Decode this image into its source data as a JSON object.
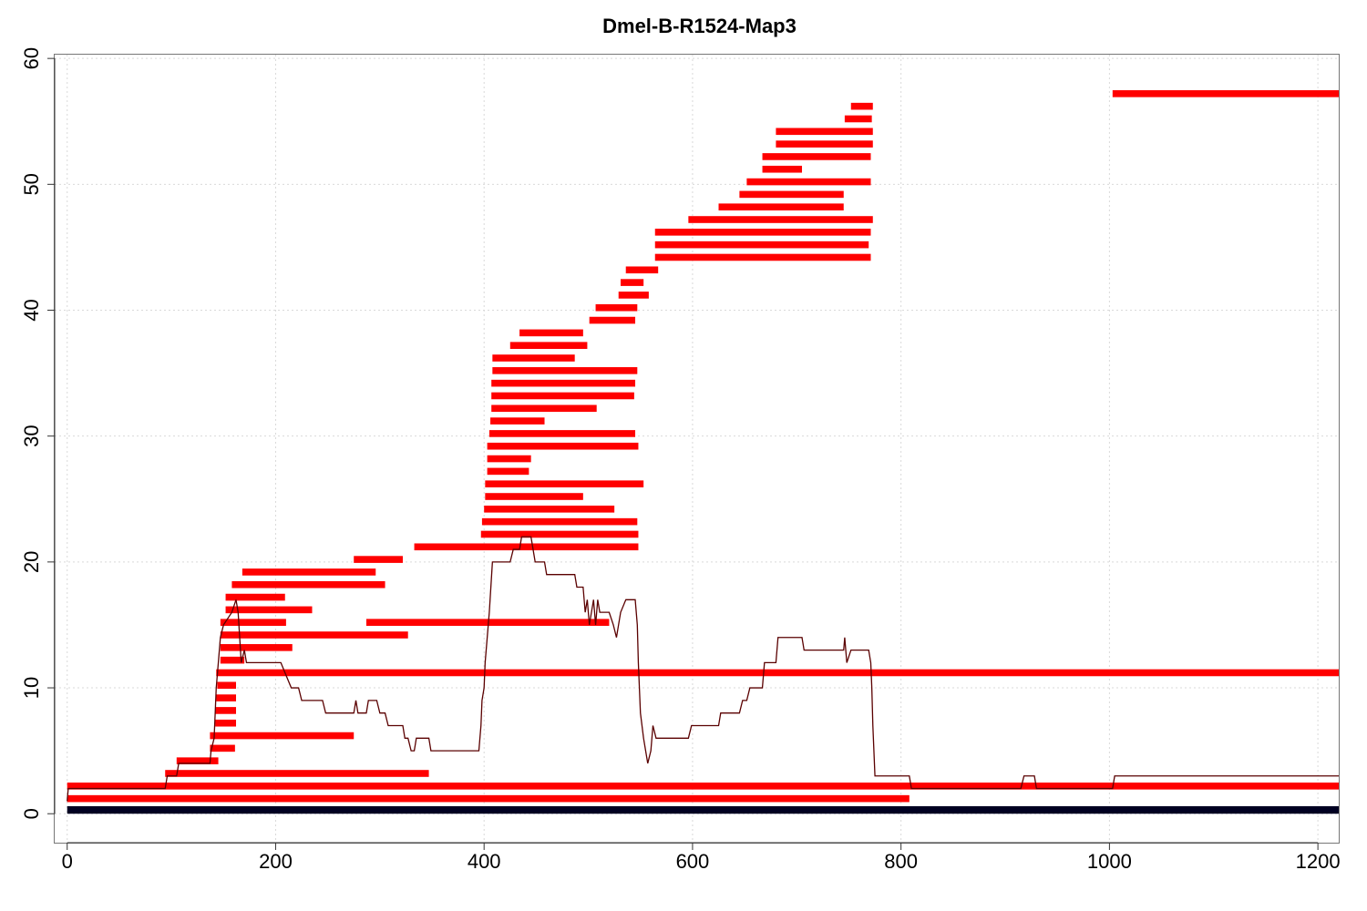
{
  "chart_data": {
    "type": "line",
    "title": "Dmel-B-R1524-Map3",
    "xlabel": "",
    "ylabel": "",
    "xlim": [
      -12,
      1220
    ],
    "ylim": [
      -2.3,
      60.3
    ],
    "xticks": [
      "0",
      "200",
      "400",
      "600",
      "800",
      "1000",
      "1200"
    ],
    "yticks": [
      "0",
      "10",
      "20",
      "30",
      "40",
      "50",
      "60"
    ],
    "grid": true,
    "colors": {
      "reads": "#ff0000",
      "coverage": "#5a0000",
      "reference": "#000022",
      "grid": "#d9d9d9"
    },
    "reference": {
      "start": 0,
      "end": 1220,
      "y": 0.3
    },
    "reads": [
      [
        1003,
        1220,
        57.2
      ],
      [
        752,
        773,
        56.2
      ],
      [
        746,
        772,
        55.2
      ],
      [
        680,
        773,
        54.2
      ],
      [
        680,
        773,
        53.2
      ],
      [
        667,
        771,
        52.2
      ],
      [
        667,
        705,
        51.2
      ],
      [
        652,
        771,
        50.2
      ],
      [
        645,
        745,
        49.2
      ],
      [
        625,
        745,
        48.2
      ],
      [
        596,
        773,
        47.2
      ],
      [
        564,
        771,
        46.2
      ],
      [
        564,
        769,
        45.2
      ],
      [
        564,
        771,
        44.2
      ],
      [
        536,
        567,
        43.2
      ],
      [
        531,
        553,
        42.2
      ],
      [
        529,
        558,
        41.2
      ],
      [
        507,
        547,
        40.2
      ],
      [
        501,
        545,
        39.2
      ],
      [
        434,
        495,
        38.2
      ],
      [
        425,
        499,
        37.2
      ],
      [
        408,
        487,
        36.2
      ],
      [
        408,
        547,
        35.2
      ],
      [
        407,
        545,
        34.2
      ],
      [
        407,
        544,
        33.2
      ],
      [
        407,
        508,
        32.2
      ],
      [
        406,
        458,
        31.2
      ],
      [
        405,
        545,
        30.2
      ],
      [
        403,
        548,
        29.2
      ],
      [
        403,
        445,
        28.2
      ],
      [
        403,
        443,
        27.2
      ],
      [
        401,
        553,
        26.2
      ],
      [
        401,
        495,
        25.2
      ],
      [
        400,
        525,
        24.2
      ],
      [
        398,
        547,
        23.2
      ],
      [
        397,
        548,
        22.2
      ],
      [
        333,
        548,
        21.2
      ],
      [
        275,
        322,
        20.2
      ],
      [
        168,
        296,
        19.2
      ],
      [
        158,
        305,
        18.2
      ],
      [
        152,
        209,
        17.2
      ],
      [
        152,
        235,
        16.2
      ],
      [
        147,
        210,
        15.2
      ],
      [
        287,
        520,
        15.2
      ],
      [
        147,
        327,
        14.2
      ],
      [
        147,
        216,
        13.2
      ],
      [
        147,
        170,
        12.2
      ],
      [
        143,
        1220,
        11.2
      ],
      [
        144,
        162,
        10.2
      ],
      [
        143,
        162,
        9.2
      ],
      [
        142,
        162,
        8.2
      ],
      [
        142,
        162,
        7.2
      ],
      [
        137,
        275,
        6.2
      ],
      [
        137,
        161,
        5.2
      ],
      [
        105,
        145,
        4.2
      ],
      [
        94,
        347,
        3.2
      ],
      [
        0,
        1220,
        2.2
      ],
      [
        0,
        808,
        1.2
      ]
    ],
    "coverage": [
      [
        0,
        1
      ],
      [
        1,
        2
      ],
      [
        94,
        2
      ],
      [
        96,
        3
      ],
      [
        105,
        3
      ],
      [
        107,
        4
      ],
      [
        137,
        4
      ],
      [
        138,
        5
      ],
      [
        141,
        6
      ],
      [
        142,
        8
      ],
      [
        143,
        10
      ],
      [
        145,
        12
      ],
      [
        147,
        14
      ],
      [
        150,
        15
      ],
      [
        158,
        16
      ],
      [
        162,
        17
      ],
      [
        164,
        16
      ],
      [
        167,
        12
      ],
      [
        170,
        13
      ],
      [
        172,
        12
      ],
      [
        205,
        12
      ],
      [
        210,
        11
      ],
      [
        215,
        10
      ],
      [
        222,
        10
      ],
      [
        225,
        9
      ],
      [
        245,
        9
      ],
      [
        248,
        8
      ],
      [
        275,
        8
      ],
      [
        277,
        9
      ],
      [
        279,
        8
      ],
      [
        287,
        8
      ],
      [
        289,
        9
      ],
      [
        297,
        9
      ],
      [
        300,
        8
      ],
      [
        305,
        8
      ],
      [
        308,
        7
      ],
      [
        322,
        7
      ],
      [
        324,
        6
      ],
      [
        327,
        6
      ],
      [
        330,
        5
      ],
      [
        333,
        5
      ],
      [
        335,
        6
      ],
      [
        347,
        6
      ],
      [
        349,
        5
      ],
      [
        395,
        5
      ],
      [
        397,
        7
      ],
      [
        398,
        9
      ],
      [
        400,
        10
      ],
      [
        401,
        12
      ],
      [
        403,
        14
      ],
      [
        405,
        16
      ],
      [
        408,
        20
      ],
      [
        425,
        20
      ],
      [
        428,
        21
      ],
      [
        434,
        21
      ],
      [
        436,
        22
      ],
      [
        445,
        22
      ],
      [
        447,
        21
      ],
      [
        449,
        20
      ],
      [
        458,
        20
      ],
      [
        460,
        19
      ],
      [
        487,
        19
      ],
      [
        489,
        18
      ],
      [
        495,
        18
      ],
      [
        497,
        16
      ],
      [
        499,
        17
      ],
      [
        501,
        15
      ],
      [
        505,
        17
      ],
      [
        507,
        15
      ],
      [
        508,
        16
      ],
      [
        509,
        17
      ],
      [
        511,
        16
      ],
      [
        520,
        16
      ],
      [
        524,
        15
      ],
      [
        527,
        14
      ],
      [
        529,
        15
      ],
      [
        531,
        16
      ],
      [
        536,
        17
      ],
      [
        545,
        17
      ],
      [
        547,
        15
      ],
      [
        548,
        12
      ],
      [
        550,
        8
      ],
      [
        553,
        6
      ],
      [
        555,
        5
      ],
      [
        557,
        4
      ],
      [
        560,
        5
      ],
      [
        562,
        7
      ],
      [
        565,
        6
      ],
      [
        596,
        6
      ],
      [
        599,
        7
      ],
      [
        625,
        7
      ],
      [
        627,
        8
      ],
      [
        645,
        8
      ],
      [
        648,
        9
      ],
      [
        652,
        9
      ],
      [
        655,
        10
      ],
      [
        667,
        10
      ],
      [
        669,
        12
      ],
      [
        680,
        12
      ],
      [
        682,
        14
      ],
      [
        705,
        14
      ],
      [
        707,
        13
      ],
      [
        745,
        13
      ],
      [
        746,
        14
      ],
      [
        748,
        12
      ],
      [
        752,
        13
      ],
      [
        769,
        13
      ],
      [
        771,
        12
      ],
      [
        772,
        10
      ],
      [
        773,
        7
      ],
      [
        775,
        3
      ],
      [
        808,
        3
      ],
      [
        810,
        2
      ],
      [
        915,
        2
      ],
      [
        918,
        3
      ],
      [
        928,
        3
      ],
      [
        930,
        2
      ],
      [
        1003,
        2
      ],
      [
        1005,
        3
      ],
      [
        1220,
        3
      ]
    ]
  }
}
